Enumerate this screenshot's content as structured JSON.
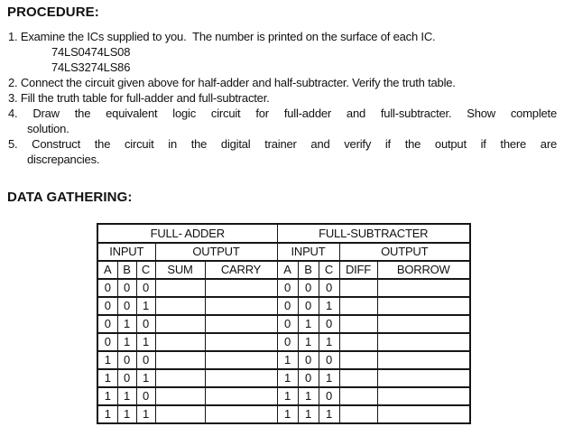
{
  "page": {
    "background": "#ffffff",
    "text_color": "#111111",
    "border_color": "#161616"
  },
  "procedure": {
    "heading": "PROCEDURE:",
    "lines": [
      {
        "text": "1. Examine the ICs supplied to you.  The number is printed on the surface of each IC.",
        "style": "item"
      },
      {
        "text": "74LS0474LS08",
        "style": "ic"
      },
      {
        "text": "74LS3274LS86",
        "style": "ic"
      },
      {
        "text": "2. Connect the circuit given above for half-adder and half-subtracter. Verify the truth table.",
        "style": "item"
      },
      {
        "text": "3. Fill the truth table for full-adder and full-subtracter.",
        "style": "item"
      },
      {
        "text": "4. Draw the equivalent logic circuit for full-adder and full-subtracter. Show complete",
        "style": "item just"
      },
      {
        "text": "solution.",
        "style": "cont"
      },
      {
        "text": "5. Construct the circuit in the digital trainer and verify if the output if there are",
        "style": "item just"
      },
      {
        "text": "discrepancies.",
        "style": "cont"
      }
    ]
  },
  "data_gathering": {
    "heading": "DATA GATHERING:"
  },
  "table": {
    "adder": {
      "title": "FULL- ADDER",
      "input_label": "INPUT",
      "output_label": "OUTPUT",
      "columns": [
        "A",
        "B",
        "C",
        "SUM",
        "CARRY"
      ]
    },
    "subtracter": {
      "title": "FULL-SUBTRACTER",
      "input_label": "INPUT",
      "output_label": "OUTPUT",
      "columns": [
        "A",
        "B",
        "C",
        "DIFF",
        "BORROW"
      ]
    },
    "rows": [
      [
        "0",
        "0",
        "0",
        "",
        "",
        "0",
        "0",
        "0",
        "",
        ""
      ],
      [
        "0",
        "0",
        "1",
        "",
        "",
        "0",
        "0",
        "1",
        "",
        ""
      ],
      [
        "0",
        "1",
        "0",
        "",
        "",
        "0",
        "1",
        "0",
        "",
        ""
      ],
      [
        "0",
        "1",
        "1",
        "",
        "",
        "0",
        "1",
        "1",
        "",
        ""
      ],
      [
        "1",
        "0",
        "0",
        "",
        "",
        "1",
        "0",
        "0",
        "",
        ""
      ],
      [
        "1",
        "0",
        "1",
        "",
        "",
        "1",
        "0",
        "1",
        "",
        ""
      ],
      [
        "1",
        "1",
        "0",
        "",
        "",
        "1",
        "1",
        "0",
        "",
        ""
      ],
      [
        "1",
        "1",
        "1",
        "",
        "",
        "1",
        "1",
        "1",
        "",
        ""
      ]
    ]
  }
}
